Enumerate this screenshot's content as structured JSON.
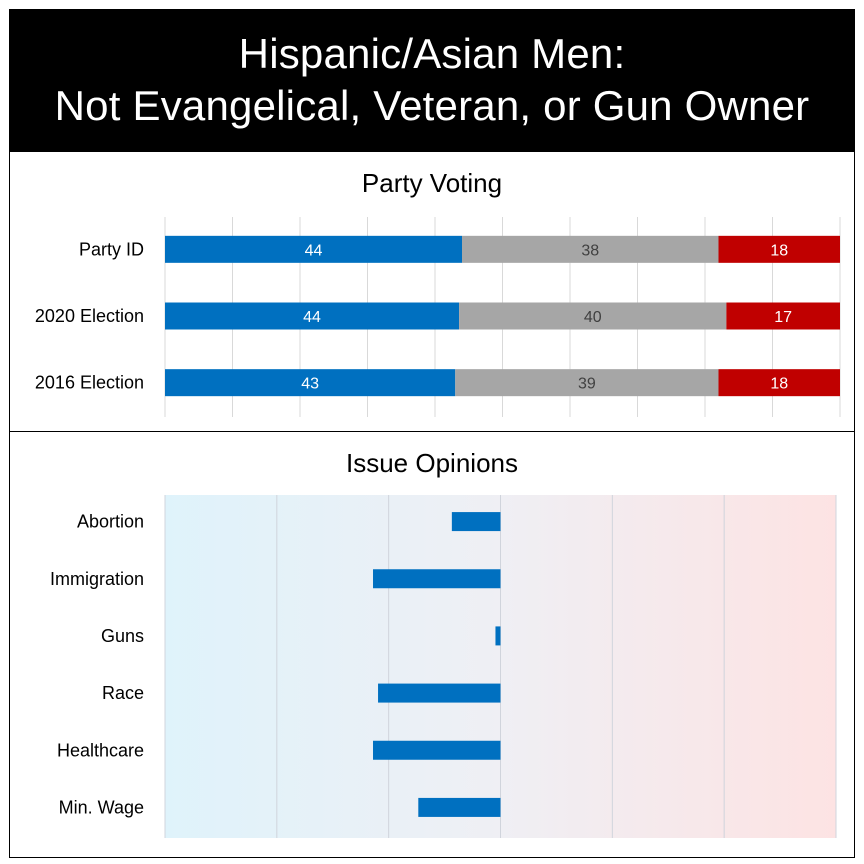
{
  "header": {
    "title_line1": "Hispanic/Asian Men:",
    "title_line2": "Not Evangelical, Veteran, or Gun Owner"
  },
  "colors": {
    "democrat": "#0070c0",
    "independent": "#a6a6a6",
    "republican": "#c00000",
    "left_bg": "#dff3fb",
    "right_bg": "#fde3e3"
  },
  "chart_data": [
    {
      "type": "bar",
      "orientation": "horizontal",
      "stacked": true,
      "title": "Party Voting",
      "categories": [
        "Party ID",
        "2020 Election",
        "2016 Election"
      ],
      "series": [
        {
          "values": [
            44,
            44,
            43
          ],
          "color": "#0070c0"
        },
        {
          "values": [
            38,
            40,
            39
          ],
          "color": "#a6a6a6"
        },
        {
          "values": [
            18,
            17,
            18
          ],
          "color": "#c00000"
        }
      ],
      "xlim": [
        0,
        100
      ],
      "grid": true,
      "data_labels": true
    },
    {
      "type": "bar",
      "orientation": "horizontal",
      "title": "Issue Opinions",
      "categories": [
        "Abortion",
        "Immigration",
        "Guns",
        "Race",
        "Healthcare",
        "Min. Wage"
      ],
      "values": [
        -0.29,
        -0.76,
        -0.03,
        -0.73,
        -0.76,
        -0.49
      ],
      "xlim": [
        -2,
        2
      ],
      "grid": true,
      "background": "gradient blue (left) to red (right)"
    }
  ]
}
